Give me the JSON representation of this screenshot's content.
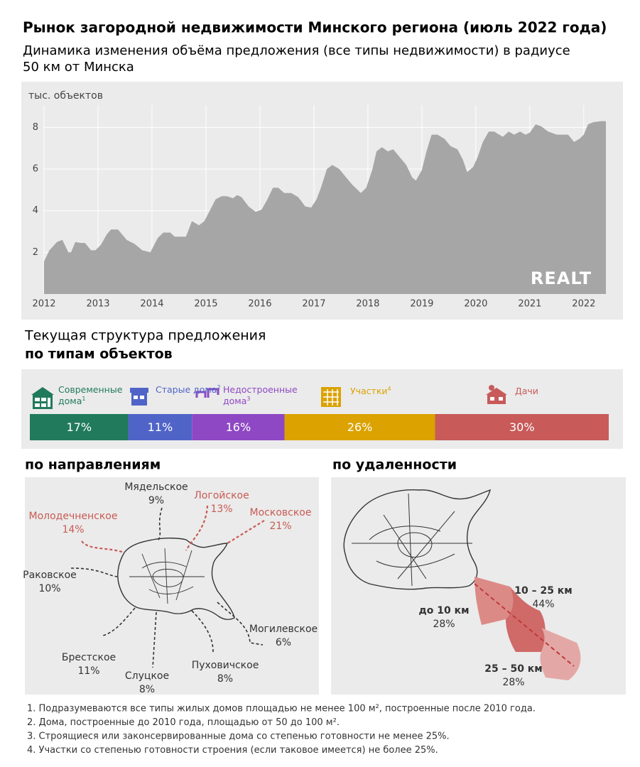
{
  "title": "Рынок загородной недвижимости Минского региона (июль 2022 года)",
  "subtitle": [
    "Динамика изменения объёма предложения (все типы недвижимости) в радиусе",
    "50 км от Минска"
  ],
  "chart_data": [
    {
      "type": "area",
      "y_label": "тыс.  объектов",
      "logo": "REALT",
      "color": "#a6a6a6",
      "grid": true,
      "x": [
        2012.0,
        2012.1,
        2012.24,
        2012.34,
        2012.45,
        2012.5,
        2012.58,
        2012.68,
        2012.76,
        2012.87,
        2012.95,
        2013.05,
        2013.16,
        2013.24,
        2013.37,
        2013.53,
        2013.68,
        2013.82,
        2013.97,
        2014.11,
        2014.21,
        2014.34,
        2014.42,
        2014.63,
        2014.74,
        2014.87,
        2014.97,
        2015.08,
        2015.18,
        2015.29,
        2015.39,
        2015.5,
        2015.58,
        2015.66,
        2015.79,
        2015.92,
        2016.03,
        2016.13,
        2016.24,
        2016.34,
        2016.45,
        2016.58,
        2016.71,
        2016.84,
        2016.95,
        2017.05,
        2017.13,
        2017.24,
        2017.34,
        2017.47,
        2017.58,
        2017.71,
        2017.87,
        2017.97,
        2018.08,
        2018.16,
        2018.26,
        2018.37,
        2018.47,
        2018.58,
        2018.71,
        2018.82,
        2018.89,
        2019.0,
        2019.08,
        2019.18,
        2019.29,
        2019.42,
        2019.53,
        2019.66,
        2019.76,
        2019.84,
        2019.95,
        2020.03,
        2020.13,
        2020.24,
        2020.34,
        2020.5,
        2020.61,
        2020.71,
        2020.82,
        2020.92,
        2021.0,
        2021.11,
        2021.21,
        2021.34,
        2021.5,
        2021.71,
        2021.82,
        2021.92,
        2022.0,
        2022.08,
        2022.18,
        2022.32,
        2022.41
      ],
      "values": [
        1.57,
        2.1,
        2.5,
        2.6,
        2.0,
        2.0,
        2.5,
        2.45,
        2.45,
        2.1,
        2.1,
        2.35,
        2.85,
        3.1,
        3.1,
        2.6,
        2.4,
        2.1,
        2.0,
        2.7,
        2.95,
        2.95,
        2.75,
        2.75,
        3.5,
        3.3,
        3.5,
        4.05,
        4.55,
        4.7,
        4.7,
        4.6,
        4.75,
        4.65,
        4.2,
        3.95,
        4.05,
        4.5,
        5.1,
        5.1,
        4.85,
        4.85,
        4.65,
        4.2,
        4.15,
        4.55,
        5.1,
        6.0,
        6.2,
        6.0,
        5.65,
        5.25,
        4.85,
        5.1,
        5.95,
        6.85,
        7.05,
        6.85,
        6.95,
        6.6,
        6.2,
        5.6,
        5.45,
        5.95,
        6.8,
        7.65,
        7.65,
        7.45,
        7.1,
        6.95,
        6.45,
        5.85,
        6.1,
        6.55,
        7.3,
        7.8,
        7.8,
        7.55,
        7.8,
        7.65,
        7.8,
        7.65,
        7.75,
        8.15,
        8.05,
        7.8,
        7.65,
        7.65,
        7.3,
        7.45,
        7.65,
        8.15,
        8.25,
        8.3,
        8.3
      ],
      "xlim": [
        2012,
        2022.41
      ],
      "xticks": [
        2012,
        2013,
        2014,
        2015,
        2016,
        2017,
        2018,
        2019,
        2020,
        2021,
        2022
      ],
      "ylim": [
        0,
        9.07
      ],
      "yticks": [
        2,
        4,
        6,
        8
      ]
    },
    {
      "type": "bar",
      "orientation": "horizontal",
      "stacked": true,
      "title": [
        "Текущая структура предложения",
        "по типам объектов"
      ],
      "xlim": [
        0,
        100
      ],
      "series": [
        {
          "name": "Современные дома",
          "note": "1",
          "color": "#217a5c",
          "values": [
            17
          ],
          "value_labels": [
            "17%"
          ]
        },
        {
          "name": "Старые дома",
          "note": "2",
          "color": "#5064c8",
          "values": [
            11
          ],
          "value_labels": [
            "11%"
          ]
        },
        {
          "name": "Недостроенные дома",
          "note": "3",
          "color": "#8e48c4",
          "values": [
            16
          ],
          "value_labels": [
            "16%"
          ]
        },
        {
          "name": "Участки",
          "note": "4",
          "color": "#dba200",
          "values": [
            26
          ],
          "value_labels": [
            "26%"
          ]
        },
        {
          "name": "Дачи",
          "note": null,
          "color": "#c85a5a",
          "values": [
            30
          ],
          "value_labels": [
            "30%"
          ]
        }
      ]
    }
  ],
  "directions": {
    "title": "по направлениям",
    "items": [
      {
        "name": "Мядельское",
        "share": "9%",
        "color": "#333333"
      },
      {
        "name": "Логойское",
        "share": "13%",
        "color": "#c85a54"
      },
      {
        "name": "Московское",
        "share": "21%",
        "color": "#c85a54"
      },
      {
        "name": "Молодечненское",
        "share": "14%",
        "color": "#c85a54"
      },
      {
        "name": "Раковское",
        "share": "10%",
        "color": "#333333"
      },
      {
        "name": "Могилевское",
        "share": "6%",
        "color": "#333333"
      },
      {
        "name": "Пуховичское",
        "share": "8%",
        "color": "#333333"
      },
      {
        "name": "Слуцкое",
        "share": "8%",
        "color": "#333333"
      },
      {
        "name": "Брестское",
        "share": "11%",
        "color": "#333333"
      }
    ]
  },
  "distance": {
    "title": "по удаленности",
    "items": [
      {
        "name": "до 10 км",
        "share": "28%",
        "color": "#dc8a86"
      },
      {
        "name": "10 – 25 км",
        "share": "44%",
        "color": "#cf6a68"
      },
      {
        "name": "25 – 50 км",
        "share": "28%",
        "color": "#e3a8a6"
      }
    ]
  },
  "footnotes": [
    "1. Подразумеваются все типы жилых домов площадью не менее 100 м², построенные после 2010 года.",
    "2. Дома, построенные до 2010 года, площадью от 50 до 100 м².",
    "3. Строящиеся или законсервированные дома со степенью готовности не менее 25%.",
    "4. Участки со степенью готовности строения (если таковое имеется) не более 25%."
  ]
}
